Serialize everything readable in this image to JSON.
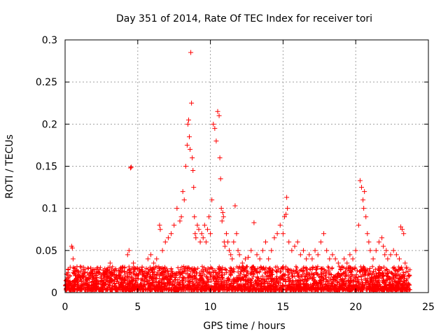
{
  "chart_data": {
    "type": "scatter",
    "title": "Day 351 of 2014, Rate Of TEC Index for receiver tori",
    "xlabel": "GPS time / hours",
    "ylabel": "ROTI / TECUs",
    "xlim": [
      0,
      25
    ],
    "ylim": [
      0,
      0.3
    ],
    "xticks": [
      0,
      5,
      10,
      15,
      20,
      25
    ],
    "xtick_labels": [
      "0",
      "5",
      "10",
      "15",
      "20",
      "25"
    ],
    "yticks": [
      0,
      0.05,
      0.1,
      0.15,
      0.2,
      0.25,
      0.3
    ],
    "ytick_labels": [
      "0",
      "0.05",
      "0.1",
      "0.15",
      "0.2",
      "0.25",
      "0.3"
    ],
    "grid": true,
    "marker": "plus",
    "colors": {
      "series": "#ff0000",
      "grid": "#a0a0a0",
      "axis": "#000000"
    },
    "series": [
      {
        "name": "ROTI",
        "x": [
          0.1,
          0.2,
          0.35,
          0.45,
          0.5,
          0.55,
          0.7,
          0.9,
          1.1,
          1.3,
          1.5,
          1.7,
          1.9,
          2.1,
          2.3,
          2.5,
          2.7,
          2.9,
          3.1,
          3.3,
          3.5,
          3.7,
          3.9,
          4.1,
          4.3,
          4.4,
          4.5,
          4.55,
          4.7,
          4.9,
          5.1,
          5.3,
          5.5,
          5.7,
          5.9,
          6.1,
          6.3,
          6.5,
          6.55,
          6.7,
          6.9,
          7.1,
          7.3,
          7.5,
          7.7,
          7.9,
          8.0,
          8.1,
          8.2,
          8.3,
          8.4,
          8.45,
          8.5,
          8.55,
          8.6,
          8.65,
          8.7,
          8.75,
          8.8,
          8.85,
          8.9,
          8.95,
          9.0,
          9.1,
          9.2,
          9.3,
          9.4,
          9.5,
          9.6,
          9.7,
          9.8,
          9.9,
          10.0,
          10.1,
          10.2,
          10.3,
          10.4,
          10.5,
          10.6,
          10.65,
          10.7,
          10.75,
          10.8,
          10.85,
          10.9,
          10.95,
          11.0,
          11.1,
          11.2,
          11.3,
          11.4,
          11.5,
          11.6,
          11.7,
          11.8,
          11.9,
          12.0,
          12.2,
          12.4,
          12.6,
          12.8,
          13.0,
          13.2,
          13.4,
          13.6,
          13.8,
          14.0,
          14.2,
          14.4,
          14.6,
          14.8,
          15.0,
          15.1,
          15.2,
          15.25,
          15.3,
          15.4,
          15.6,
          15.8,
          16.0,
          16.2,
          16.4,
          16.6,
          16.8,
          17.0,
          17.2,
          17.4,
          17.6,
          17.8,
          18.0,
          18.2,
          18.4,
          18.6,
          18.8,
          19.0,
          19.2,
          19.4,
          19.6,
          19.8,
          20.0,
          20.2,
          20.3,
          20.4,
          20.5,
          20.55,
          20.6,
          20.7,
          20.8,
          20.9,
          21.0,
          21.2,
          21.4,
          21.6,
          21.8,
          21.9,
          22.0,
          22.1,
          22.2,
          22.4,
          22.6,
          22.8,
          23.0,
          23.1,
          23.2,
          23.3,
          23.4,
          23.5,
          23.6,
          23.7
        ],
        "y": [
          0.022,
          0.018,
          0.03,
          0.055,
          0.053,
          0.04,
          0.02,
          0.025,
          0.018,
          0.02,
          0.015,
          0.022,
          0.018,
          0.02,
          0.024,
          0.017,
          0.021,
          0.019,
          0.035,
          0.022,
          0.018,
          0.02,
          0.025,
          0.03,
          0.045,
          0.05,
          0.148,
          0.149,
          0.035,
          0.022,
          0.028,
          0.03,
          0.025,
          0.04,
          0.045,
          0.035,
          0.04,
          0.08,
          0.075,
          0.05,
          0.06,
          0.065,
          0.07,
          0.08,
          0.1,
          0.085,
          0.09,
          0.12,
          0.11,
          0.15,
          0.175,
          0.2,
          0.205,
          0.185,
          0.17,
          0.285,
          0.225,
          0.16,
          0.145,
          0.125,
          0.09,
          0.07,
          0.065,
          0.08,
          0.075,
          0.06,
          0.07,
          0.065,
          0.08,
          0.06,
          0.075,
          0.09,
          0.07,
          0.11,
          0.2,
          0.195,
          0.18,
          0.215,
          0.21,
          0.16,
          0.135,
          0.1,
          0.085,
          0.095,
          0.09,
          0.06,
          0.055,
          0.07,
          0.06,
          0.05,
          0.045,
          0.04,
          0.06,
          0.103,
          0.07,
          0.05,
          0.045,
          0.035,
          0.04,
          0.042,
          0.05,
          0.083,
          0.045,
          0.04,
          0.05,
          0.06,
          0.04,
          0.05,
          0.065,
          0.07,
          0.08,
          0.07,
          0.09,
          0.093,
          0.113,
          0.1,
          0.06,
          0.05,
          0.055,
          0.06,
          0.045,
          0.05,
          0.04,
          0.045,
          0.04,
          0.05,
          0.045,
          0.06,
          0.07,
          0.05,
          0.04,
          0.045,
          0.04,
          0.035,
          0.03,
          0.04,
          0.035,
          0.045,
          0.04,
          0.05,
          0.08,
          0.133,
          0.125,
          0.11,
          0.1,
          0.12,
          0.09,
          0.07,
          0.06,
          0.05,
          0.04,
          0.05,
          0.06,
          0.065,
          0.055,
          0.045,
          0.05,
          0.04,
          0.045,
          0.05,
          0.045,
          0.04,
          0.078,
          0.075,
          0.07,
          0.035,
          0.03,
          0.025,
          0.02
        ]
      }
    ]
  }
}
